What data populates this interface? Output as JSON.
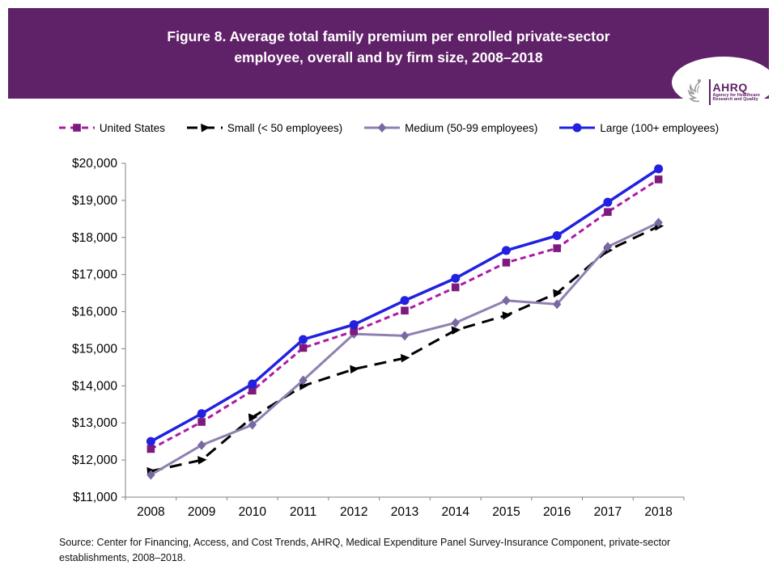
{
  "header": {
    "title_line1": "Figure 8. Average total family premium per enrolled private-sector",
    "title_line2": "employee, overall and by firm size, 2008–2018",
    "background_color": "#5f2167"
  },
  "logo": {
    "acronym": "AHRQ",
    "tagline_line1": "Agency for Healthcare",
    "tagline_line2": "Research and Quality",
    "text_color": "#5f2167"
  },
  "chart_data": {
    "type": "line",
    "title": "Average total family premium per enrolled private-sector employee, overall and by firm size, 2008–2018",
    "categories": [
      "2008",
      "2009",
      "2010",
      "2011",
      "2012",
      "2013",
      "2014",
      "2015",
      "2016",
      "2017",
      "2018"
    ],
    "series": [
      {
        "name": "United States",
        "color": "#AD18A5",
        "marker": "square",
        "marker_color": "#7D1A7D",
        "dash": "short",
        "values": [
          12298,
          13027,
          13871,
          15022,
          15473,
          16029,
          16655,
          17322,
          17710,
          18687,
          19565
        ]
      },
      {
        "name": "Small (< 50 employees)",
        "color": "#000000",
        "marker": "triangle",
        "marker_color": "#000000",
        "dash": "long",
        "values": [
          11700,
          12000,
          13150,
          14000,
          14450,
          14750,
          15500,
          15900,
          16500,
          17650,
          18300
        ]
      },
      {
        "name": "Medium (50-99 employees)",
        "color": "#8F80B0",
        "marker": "diamond",
        "marker_color": "#7A68A2",
        "dash": "none",
        "values": [
          11600,
          12400,
          12950,
          14150,
          15400,
          15350,
          15700,
          16300,
          16200,
          17750,
          18400
        ]
      },
      {
        "name": "Large (100+ employees)",
        "color": "#2121DF",
        "marker": "circle",
        "marker_color": "#2121DF",
        "dash": "none",
        "values": [
          12500,
          13250,
          14050,
          15250,
          15650,
          16300,
          16900,
          17650,
          18050,
          18950,
          19850
        ]
      }
    ],
    "y_tick_labels": [
      "$20,000",
      "$19,000",
      "$18,000",
      "$17,000",
      "$16,000",
      "$15,000",
      "$14,000",
      "$13,000",
      "$12,000",
      "$11,000"
    ],
    "ylim": [
      11000,
      20000
    ],
    "y_step": 1000,
    "grid": false,
    "legend_position": "top",
    "axis_color": "#808080"
  },
  "source": {
    "line1": "Source: Center for Financing, Access, and Cost Trends, AHRQ, Medical Expenditure Panel Survey-Insurance  Component,  private-sector",
    "line2": "establishments, 2008–2018."
  }
}
